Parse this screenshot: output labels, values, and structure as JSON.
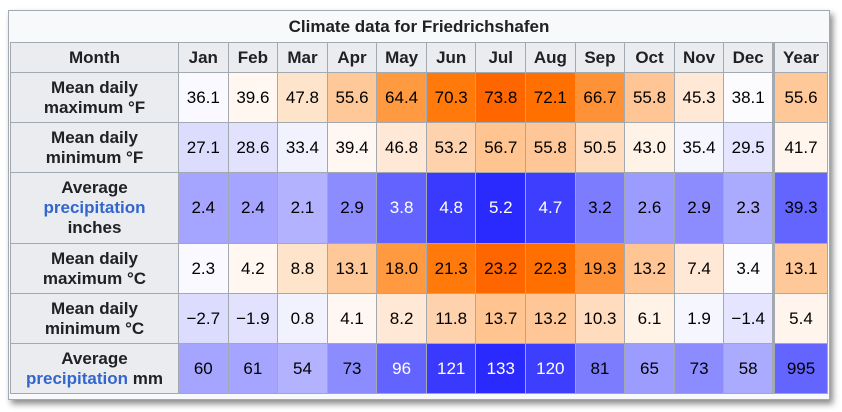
{
  "caption": "Climate data for Friedrichshafen",
  "header": {
    "month_label": "Month",
    "columns": [
      "Jan",
      "Feb",
      "Mar",
      "Apr",
      "May",
      "Jun",
      "Jul",
      "Aug",
      "Sep",
      "Oct",
      "Nov",
      "Dec",
      "Year"
    ]
  },
  "rows": [
    {
      "label_line1": "Mean daily",
      "label_line2": "maximum °F",
      "values": [
        "36.1",
        "39.6",
        "47.8",
        "55.6",
        "64.4",
        "70.3",
        "73.8",
        "72.1",
        "66.7",
        "55.8",
        "45.3",
        "38.1",
        "55.6"
      ],
      "colors": [
        "#f9f9ff",
        "#fff7f0",
        "#ffe4cc",
        "#ffc899",
        "#ff9a40",
        "#ff7a0a",
        "#ff6600",
        "#ff7000",
        "#ff9236",
        "#ffc595",
        "#ffe9d6",
        "#fcfcff",
        "#ffc899"
      ],
      "text_colors": [
        "#000",
        "#000",
        "#000",
        "#000",
        "#000",
        "#000",
        "#000",
        "#000",
        "#000",
        "#000",
        "#000",
        "#000",
        "#000"
      ]
    },
    {
      "label_line1": "Mean daily",
      "label_line2": "minimum °F",
      "values": [
        "27.1",
        "28.6",
        "33.4",
        "39.4",
        "46.8",
        "53.2",
        "56.7",
        "55.8",
        "50.5",
        "43.0",
        "35.4",
        "29.5",
        "41.7"
      ],
      "colors": [
        "#dcdcff",
        "#e2e2ff",
        "#f2f2ff",
        "#fff8f2",
        "#ffe9d6",
        "#ffd2ae",
        "#ffc48f",
        "#ffc797",
        "#ffdcbd",
        "#fff2e6",
        "#f6f6ff",
        "#e5e5ff",
        "#fff5ec"
      ],
      "text_colors": [
        "#000",
        "#000",
        "#000",
        "#000",
        "#000",
        "#000",
        "#000",
        "#000",
        "#000",
        "#000",
        "#000",
        "#000",
        "#000"
      ]
    },
    {
      "label_line1": "Average",
      "label_link": "precipitation",
      "label_line2": "inches",
      "values": [
        "2.4",
        "2.4",
        "2.1",
        "2.9",
        "3.8",
        "4.8",
        "5.2",
        "4.7",
        "3.2",
        "2.6",
        "2.9",
        "2.3",
        "39.3"
      ],
      "colors": [
        "#a5a5ff",
        "#a5a5ff",
        "#b2b2ff",
        "#8c8cff",
        "#6363ff",
        "#3a3aff",
        "#2a2aff",
        "#3e3eff",
        "#7c7cff",
        "#9c9cff",
        "#8c8cff",
        "#aaaaff",
        "#6464ff"
      ],
      "text_colors": [
        "#000",
        "#000",
        "#000",
        "#000",
        "#fff",
        "#fff",
        "#fff",
        "#fff",
        "#000",
        "#000",
        "#000",
        "#000",
        "#000"
      ]
    },
    {
      "label_line1": "Mean daily",
      "label_line2": "maximum °C",
      "values": [
        "2.3",
        "4.2",
        "8.8",
        "13.1",
        "18.0",
        "21.3",
        "23.2",
        "22.3",
        "19.3",
        "13.2",
        "7.4",
        "3.4",
        "13.1"
      ],
      "colors": [
        "#f9f9ff",
        "#fff7f0",
        "#ffe4cc",
        "#ffc899",
        "#ff9a40",
        "#ff7a0a",
        "#ff6600",
        "#ff7000",
        "#ff9236",
        "#ffc595",
        "#ffe9d6",
        "#fcfcff",
        "#ffc899"
      ],
      "text_colors": [
        "#000",
        "#000",
        "#000",
        "#000",
        "#000",
        "#000",
        "#000",
        "#000",
        "#000",
        "#000",
        "#000",
        "#000",
        "#000"
      ]
    },
    {
      "label_line1": "Mean daily",
      "label_line2": "minimum °C",
      "values": [
        "−2.7",
        "−1.9",
        "0.8",
        "4.1",
        "8.2",
        "11.8",
        "13.7",
        "13.2",
        "10.3",
        "6.1",
        "1.9",
        "−1.4",
        "5.4"
      ],
      "colors": [
        "#dcdcff",
        "#e2e2ff",
        "#f2f2ff",
        "#fff8f2",
        "#ffe9d6",
        "#ffd2ae",
        "#ffc48f",
        "#ffc797",
        "#ffdcbd",
        "#fff2e6",
        "#f6f6ff",
        "#e5e5ff",
        "#fff5ec"
      ],
      "text_colors": [
        "#000",
        "#000",
        "#000",
        "#000",
        "#000",
        "#000",
        "#000",
        "#000",
        "#000",
        "#000",
        "#000",
        "#000",
        "#000"
      ]
    },
    {
      "label_line1": "Average",
      "label_link": "precipitation",
      "label_line2": "mm",
      "values": [
        "60",
        "61",
        "54",
        "73",
        "96",
        "121",
        "133",
        "120",
        "81",
        "65",
        "73",
        "58",
        "995"
      ],
      "colors": [
        "#a5a5ff",
        "#a5a5ff",
        "#b2b2ff",
        "#8c8cff",
        "#6363ff",
        "#3a3aff",
        "#2a2aff",
        "#3e3eff",
        "#7c7cff",
        "#9c9cff",
        "#8c8cff",
        "#aaaaff",
        "#6464ff"
      ],
      "text_colors": [
        "#000",
        "#000",
        "#000",
        "#000",
        "#fff",
        "#fff",
        "#fff",
        "#fff",
        "#000",
        "#000",
        "#000",
        "#000",
        "#000"
      ]
    }
  ]
}
